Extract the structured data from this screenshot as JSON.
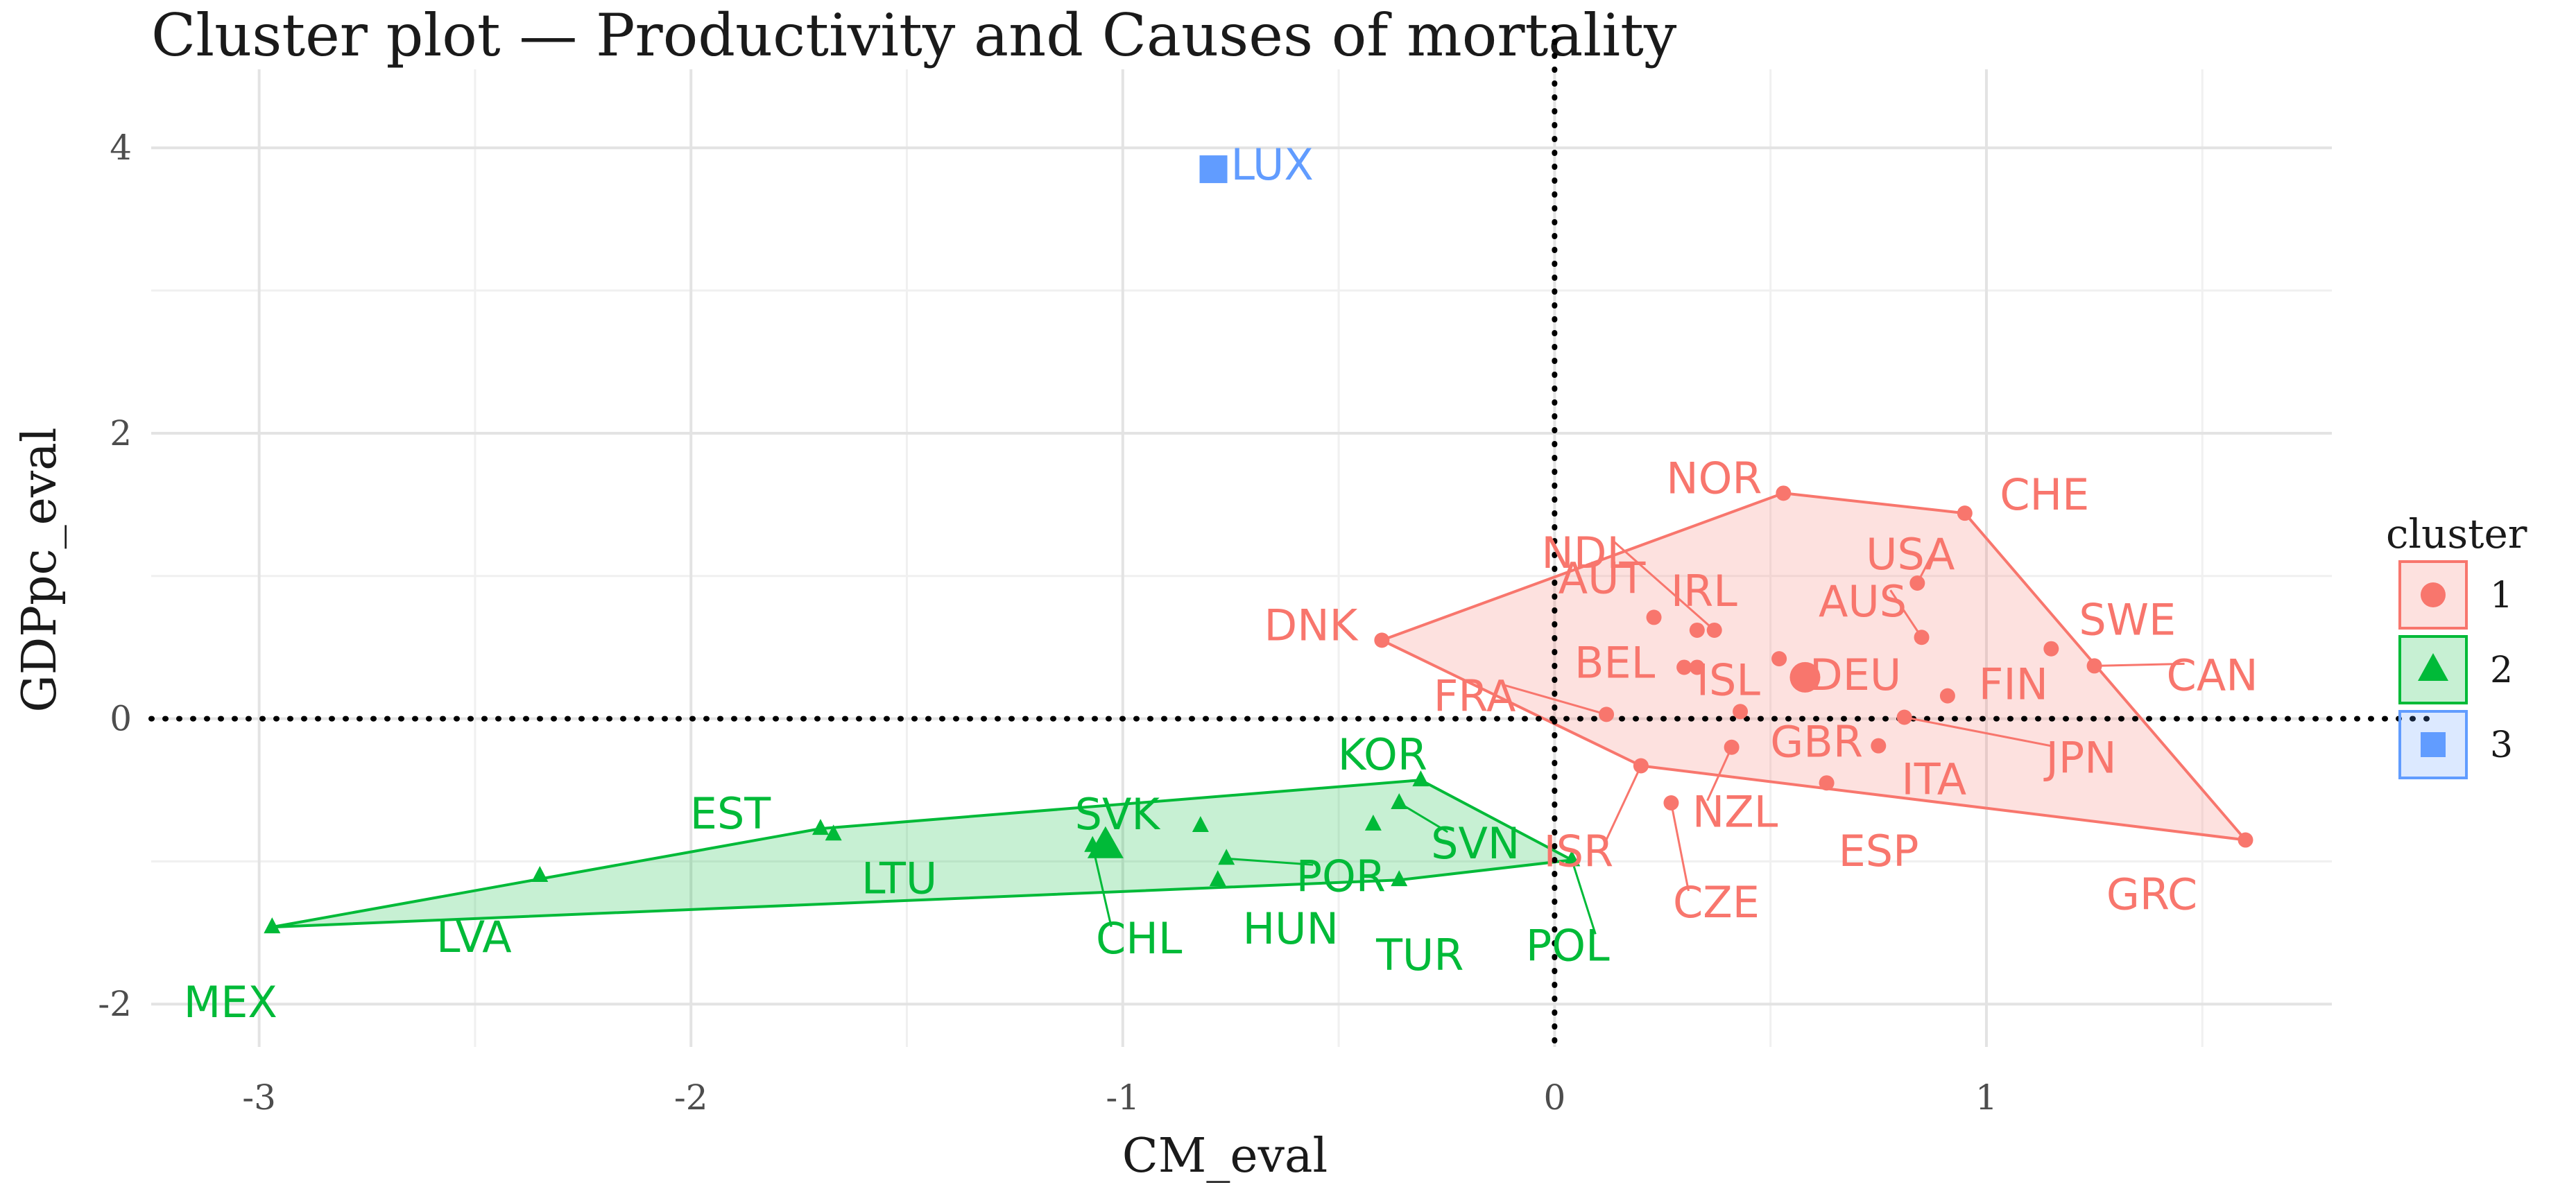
{
  "chart_data": {
    "type": "scatter",
    "title": "Cluster plot — Productivity and Causes of mortality",
    "xlabel": "CM_eval",
    "ylabel": "GDPpc_eval",
    "xlim": [
      -3.25,
      1.8
    ],
    "ylim": [
      -2.3,
      4.55
    ],
    "xticks": [
      -3,
      -2,
      -1,
      0,
      1
    ],
    "yticks": [
      -2,
      0,
      2,
      4
    ],
    "x_minor_ticks": [
      -2.5,
      -1.5,
      -0.5,
      0.5,
      1.5
    ],
    "y_minor_ticks": [
      -1,
      1,
      3
    ],
    "reference_lines": {
      "x": 0,
      "y": 0
    },
    "legend": {
      "title": "cluster",
      "placement": "right",
      "entries": [
        {
          "label": "1",
          "shape": "circle",
          "color": "#F8766D"
        },
        {
          "label": "2",
          "shape": "triangle",
          "color": "#00BA38"
        },
        {
          "label": "3",
          "shape": "square",
          "color": "#619CFF"
        }
      ]
    },
    "clusters": [
      {
        "name": "1",
        "shape": "circle",
        "color": "#F8766D",
        "fill": "#F8766D",
        "hull": [
          "DNK",
          "NOR",
          "CHE",
          "GRC",
          "ISR"
        ],
        "center": {
          "x": 0.58,
          "y": 0.29
        },
        "points": [
          {
            "label": "NOR",
            "x": 0.53,
            "y": 1.58
          },
          {
            "label": "CHE",
            "x": 0.95,
            "y": 1.44
          },
          {
            "label": "USA",
            "x": 0.84,
            "y": 0.95
          },
          {
            "label": "NDL",
            "x": 0.37,
            "y": 0.62
          },
          {
            "label": "AUT",
            "x": 0.23,
            "y": 0.71
          },
          {
            "label": "IRL",
            "x": 0.33,
            "y": 0.62
          },
          {
            "label": "AUS",
            "x": 0.85,
            "y": 0.57
          },
          {
            "label": "DNK",
            "x": -0.4,
            "y": 0.55
          },
          {
            "label": "SWE",
            "x": 1.15,
            "y": 0.49
          },
          {
            "label": "CAN",
            "x": 1.25,
            "y": 0.37
          },
          {
            "label": "BEL",
            "x": 0.3,
            "y": 0.36
          },
          {
            "label": "ISL",
            "x": 0.33,
            "y": 0.36
          },
          {
            "label": "DEU",
            "x": 0.52,
            "y": 0.42
          },
          {
            "label": "FIN",
            "x": 0.91,
            "y": 0.16
          },
          {
            "label": "FRA",
            "x": 0.12,
            "y": 0.03
          },
          {
            "label": "GBR",
            "x": 0.43,
            "y": 0.05
          },
          {
            "label": "ITA",
            "x": 0.75,
            "y": -0.19
          },
          {
            "label": "JPN",
            "x": 0.81,
            "y": 0.01
          },
          {
            "label": "NZL",
            "x": 0.41,
            "y": -0.2
          },
          {
            "label": "ISR",
            "x": 0.2,
            "y": -0.33
          },
          {
            "label": "CZE",
            "x": 0.27,
            "y": -0.59
          },
          {
            "label": "ESP",
            "x": 0.63,
            "y": -0.45
          },
          {
            "label": "GRC",
            "x": 1.6,
            "y": -0.85
          }
        ]
      },
      {
        "name": "2",
        "shape": "triangle",
        "color": "#00BA38",
        "fill": "#00BA38",
        "hull": [
          "MEX",
          "EST",
          "KOR",
          "POL",
          "TUR"
        ],
        "center": {
          "x": -1.04,
          "y": -0.89
        },
        "points": [
          {
            "label": "MEX",
            "x": -2.97,
            "y": -1.46
          },
          {
            "label": "LVA",
            "x": -2.35,
            "y": -1.1
          },
          {
            "label": "EST",
            "x": -1.7,
            "y": -0.77
          },
          {
            "label": "LTU",
            "x": -1.67,
            "y": -0.81
          },
          {
            "label": "SVK",
            "x": -0.82,
            "y": -0.75
          },
          {
            "label": "CHL",
            "x": -1.07,
            "y": -0.89
          },
          {
            "label": "HUN",
            "x": -0.78,
            "y": -1.13
          },
          {
            "label": "POR",
            "x": -0.76,
            "y": -0.98
          },
          {
            "label": "KOR",
            "x": -0.31,
            "y": -0.43
          },
          {
            "label": "SVN",
            "x": -0.36,
            "y": -0.59
          },
          {
            "label": "TUR",
            "x": -0.36,
            "y": -1.13
          },
          {
            "label": "POL",
            "x": 0.04,
            "y": -0.99
          },
          {
            "label": "",
            "x": -0.42,
            "y": -0.74
          }
        ]
      },
      {
        "name": "3",
        "shape": "square",
        "color": "#619CFF",
        "fill": "#619CFF",
        "hull": [],
        "points": [
          {
            "label": "LUX",
            "x": -0.79,
            "y": 3.85
          }
        ]
      }
    ]
  }
}
